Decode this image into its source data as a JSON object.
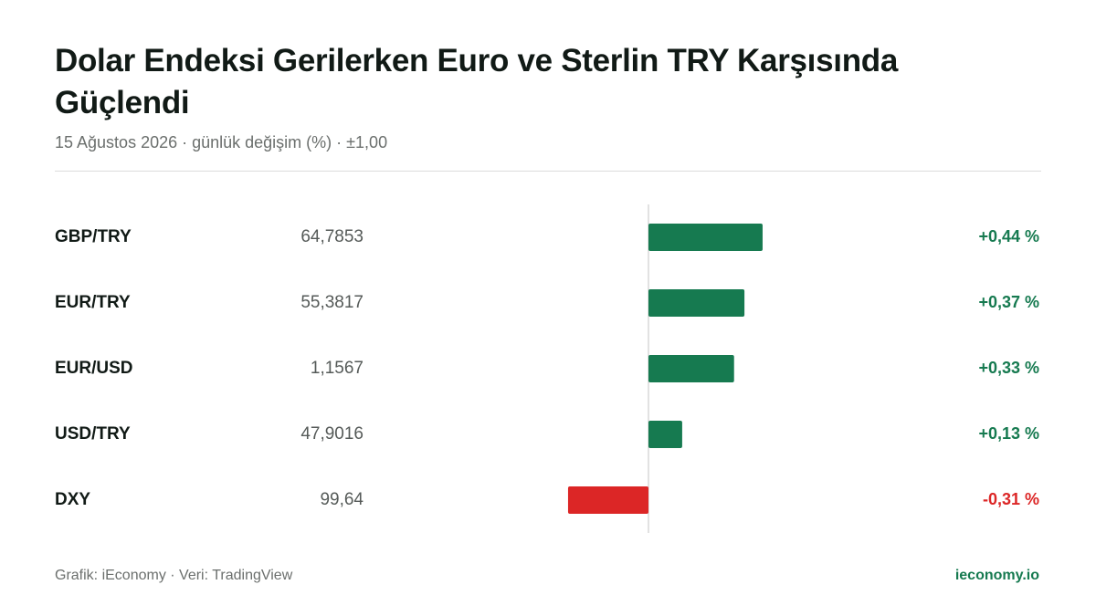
{
  "chart_data": {
    "type": "bar",
    "orientation": "horizontal",
    "title": "Dolar Endeksi Gerilerken Euro ve Sterlin TRY Karşısında Güçlendi",
    "subtitle": "15 Ağustos 2026 · günlük değişim (%) · ±1,00",
    "categories": [
      "GBP/TRY",
      "EUR/TRY",
      "EUR/USD",
      "USD/TRY",
      "DXY"
    ],
    "prices": [
      "64,7853",
      "55,3817",
      "1,1567",
      "47,9016",
      "99,64"
    ],
    "values": [
      0.44,
      0.37,
      0.33,
      0.13,
      -0.31
    ],
    "value_labels": [
      "+0,44 %",
      "+0,37 %",
      "+0,33 %",
      "+0,13 %",
      "-0,31 %"
    ],
    "xlim": [
      -1,
      1
    ],
    "positive_color": "#167a50",
    "negative_color": "#dc2626",
    "source": "Grafik: iEconomy · Veri: TradingView",
    "brand": "ieconomy.io"
  }
}
